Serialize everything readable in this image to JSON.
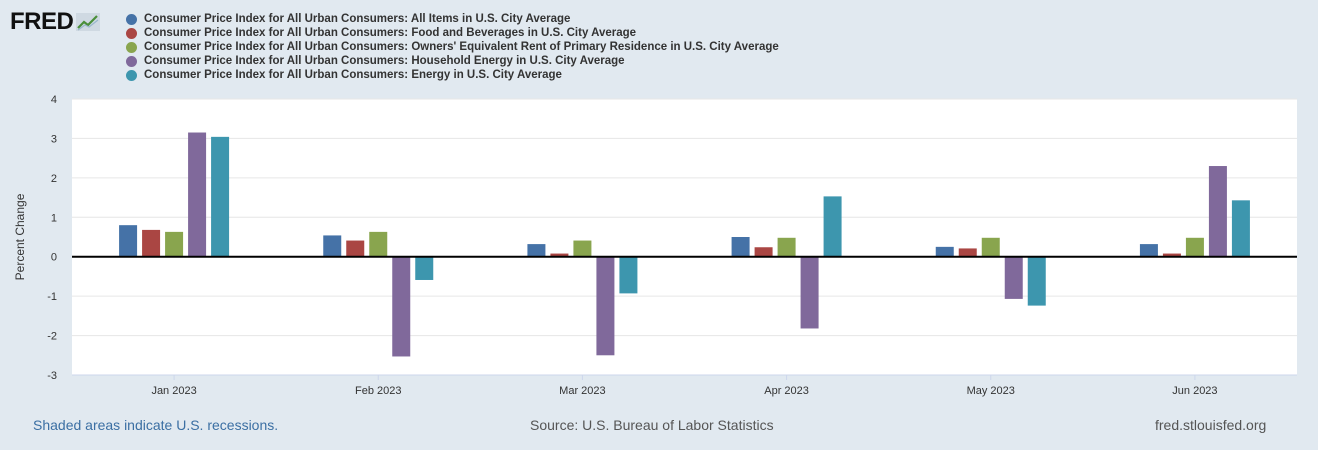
{
  "logo": {
    "text": "FRED",
    "icon": "line-chart-icon"
  },
  "colors": {
    "background": "#e1e9f0",
    "plot_bg": "#ffffff",
    "grid": "#e6e6e6",
    "zero_line": "#000000"
  },
  "chart_data": {
    "type": "bar",
    "ylabel": "Percent Change",
    "ylim": [
      -3,
      4
    ],
    "yticks": [
      4,
      3,
      2,
      1,
      0,
      -1,
      -2,
      -3
    ],
    "ytick_labels": [
      "4",
      "3",
      "2",
      "1",
      "0",
      "-1",
      "-2",
      "-3"
    ],
    "categories": [
      "Jan 2023",
      "Feb 2023",
      "Mar 2023",
      "Apr 2023",
      "May 2023",
      "Jun 2023"
    ],
    "grid": true,
    "legend_position": "top",
    "series": [
      {
        "name": "Consumer Price Index for All Urban Consumers: All Items in U.S. City Average",
        "color": "#4572a7",
        "values": [
          0.8,
          0.54,
          0.32,
          0.5,
          0.25,
          0.32
        ]
      },
      {
        "name": "Consumer Price Index for All Urban Consumers: Food and Beverages in U.S. City Average",
        "color": "#aa4643",
        "values": [
          0.68,
          0.41,
          0.08,
          0.24,
          0.21,
          0.08
        ]
      },
      {
        "name": "Consumer Price Index for All Urban Consumers: Owners' Equivalent Rent of Primary Residence in U.S. City Average",
        "color": "#89a54e",
        "values": [
          0.63,
          0.63,
          0.41,
          0.48,
          0.48,
          0.48
        ]
      },
      {
        "name": "Consumer Price Index for All Urban Consumers: Household Energy in U.S. City Average",
        "color": "#80699b",
        "values": [
          3.15,
          -2.53,
          -2.5,
          -1.82,
          -1.07,
          2.3
        ]
      },
      {
        "name": "Consumer Price Index for All Urban Consumers: Energy in U.S. City Average",
        "color": "#3d96ae",
        "values": [
          3.04,
          -0.59,
          -0.93,
          1.53,
          -1.24,
          1.43
        ]
      }
    ]
  },
  "footer": {
    "left": "Shaded areas indicate U.S. recessions.",
    "middle": "Source: U.S. Bureau of Labor Statistics",
    "right": "fred.stlouisfed.org"
  }
}
